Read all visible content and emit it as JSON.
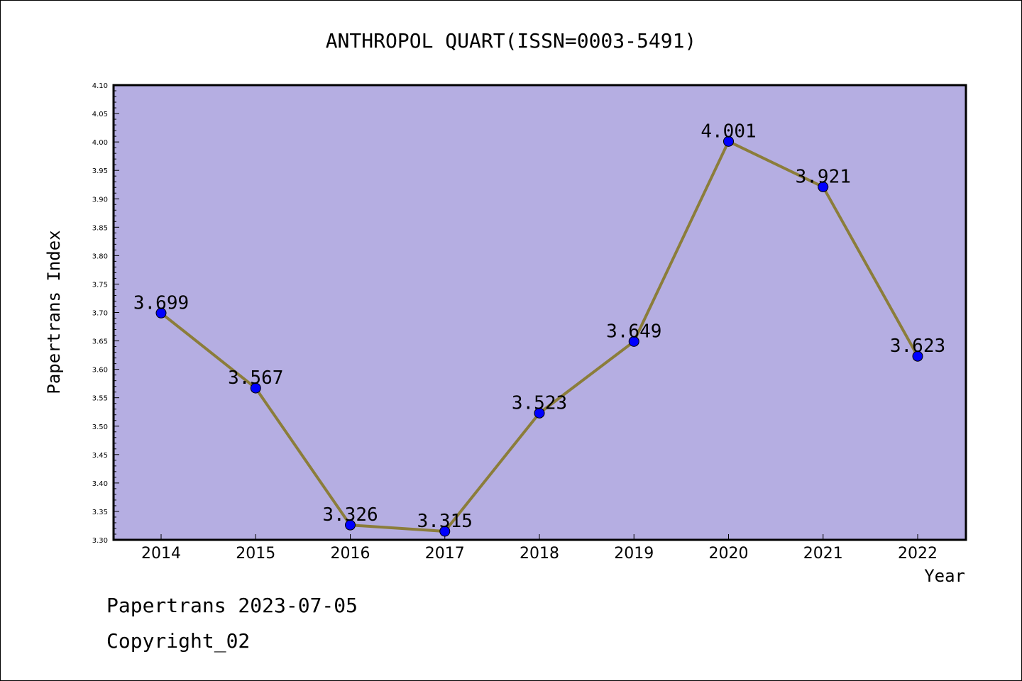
{
  "chart_data": {
    "type": "line",
    "title": "ANTHROPOL QUART(ISSN=0003-5491)",
    "xlabel": "Year",
    "ylabel": "Papertrans Index",
    "categories": [
      "2014",
      "2015",
      "2016",
      "2017",
      "2018",
      "2019",
      "2020",
      "2021",
      "2022"
    ],
    "series": [
      {
        "values": [
          3.699,
          3.567,
          3.326,
          3.315,
          3.523,
          3.649,
          4.001,
          3.921,
          3.623
        ],
        "labels": [
          "3.699",
          "3.567",
          "3.326",
          "3.315",
          "3.523",
          "3.649",
          "4.001",
          "3.921",
          "3.623"
        ]
      }
    ],
    "ylim": [
      3.3,
      4.1
    ],
    "yticks": [
      "3.30",
      "3.35",
      "3.40",
      "3.45",
      "3.50",
      "3.55",
      "3.60",
      "3.65",
      "3.70",
      "3.75",
      "3.80",
      "3.85",
      "3.90",
      "3.95",
      "4.00",
      "4.05",
      "4.10"
    ],
    "grid": false,
    "colors": {
      "plot_background": "#b5aee2",
      "line": "#8b7d3a",
      "marker": "#0000ff"
    }
  },
  "footer": {
    "source": "Papertrans 2023-07-05",
    "copyright": "Copyright_02"
  }
}
